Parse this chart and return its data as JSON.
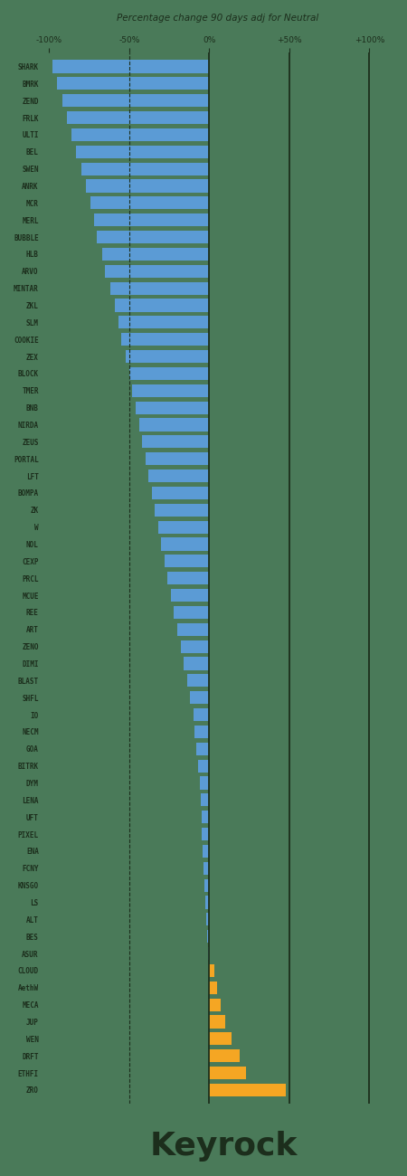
{
  "title": "Percentage change 90 days adj for Neutral",
  "background_color": "#4a7a59",
  "bar_color_negative": "#5b9bd5",
  "bar_color_positive": "#f5a623",
  "text_color": "#1c2e1c",
  "watermark": "Keyrock",
  "xlim": [
    -105,
    115
  ],
  "xticks": [
    -100,
    -50,
    0,
    50,
    100
  ],
  "xtick_labels": [
    "-100%",
    "-50%",
    "0%",
    "+50%",
    "+100%"
  ],
  "categories": [
    "SHARK",
    "BMRK",
    "ZEND",
    "FRLK",
    "ULTI",
    "BEL",
    "SWEN",
    "ANRK",
    "MCR",
    "MERL",
    "BUBBLE",
    "HLB",
    "ARVO",
    "MINTAR",
    "ZKL",
    "SLM",
    "COOKIE",
    "ZEX",
    "BLOCK",
    "TMER",
    "BNB",
    "NIRDA",
    "ZEUS",
    "PORTAL",
    "LFT",
    "BOMPA",
    "ZK",
    "W",
    "NOL",
    "CEXP",
    "PRCL",
    "MCUE",
    "REE",
    "ART",
    "ZENO",
    "DIMI",
    "BLAST",
    "SHFL",
    "IO",
    "NECM",
    "GOA",
    "BITRK",
    "DYM",
    "LENA",
    "UFT",
    "PIXEL",
    "ENA",
    "FCNY",
    "KNSGO",
    "LS",
    "ALT",
    "BES",
    "ASUR",
    "CLOUD",
    "AethW",
    "MECA",
    "JUP",
    "WEN",
    "DRFT",
    "ETHFI",
    "ZRO"
  ],
  "values": [
    -98,
    -95,
    -92,
    -89,
    -86,
    -83,
    -80,
    -77,
    -74,
    -72,
    -70,
    -67,
    -65,
    -62,
    -59,
    -57,
    -55,
    -52,
    -50,
    -48,
    -46,
    -44,
    -42,
    -40,
    -38,
    -36,
    -34,
    -32,
    -30,
    -28,
    -26,
    -24,
    -22,
    -20,
    -18,
    -16,
    -14,
    -12,
    -10,
    -9,
    -8,
    -7,
    -6,
    -5.5,
    -5,
    -4.5,
    -4,
    -3.5,
    -3,
    -2.5,
    -2,
    -1.5,
    -1,
    3,
    5,
    7,
    10,
    14,
    19,
    23,
    48
  ],
  "vline_solid": [
    0,
    50,
    100
  ],
  "vline_dashed": [
    -50
  ],
  "vline_color": "#1c2e1c",
  "fig_width": 4.5,
  "fig_height": 13.0,
  "bar_height": 0.75,
  "label_fontsize": 5.5,
  "tick_fontsize": 6.5,
  "title_fontsize": 7.5,
  "watermark_fontsize": 26
}
